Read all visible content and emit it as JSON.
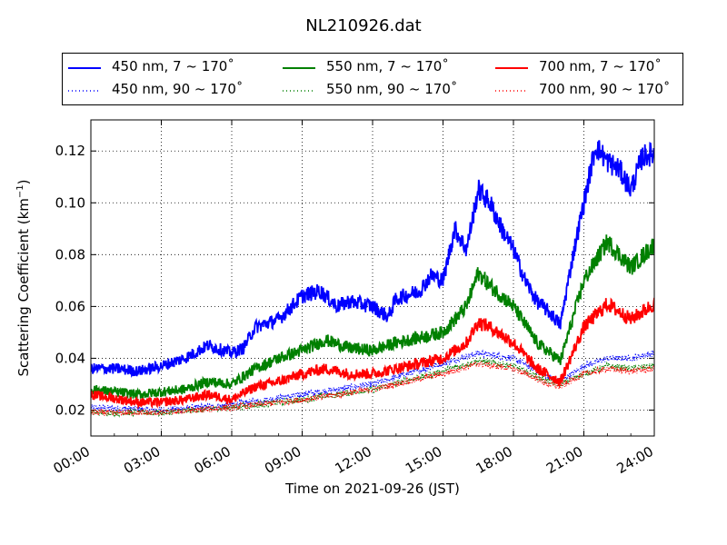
{
  "chart_data": {
    "type": "line",
    "title": "NL210926.dat",
    "xlabel": "Time on 2021-09-26 (JST)",
    "ylabel": "Scattering Coefficient (km",
    "ylabel_sup": "−1",
    "ylabel_suffix": ")",
    "xlim": [
      "00:00",
      "24:00"
    ],
    "ylim": [
      0.01,
      0.132
    ],
    "x_ticks": [
      "00:00",
      "03:00",
      "06:00",
      "09:00",
      "12:00",
      "15:00",
      "18:00",
      "21:00",
      "24:00"
    ],
    "y_ticks": [
      "0.02",
      "0.04",
      "0.06",
      "0.08",
      "0.10",
      "0.12"
    ],
    "grid": true,
    "legend_position": "top",
    "series": [
      {
        "name": "450 nm, 7 ~ 170˚",
        "color": "#0000ff",
        "style": "solid",
        "points": [
          [
            "00:00",
            0.036
          ],
          [
            "01:00",
            0.036
          ],
          [
            "02:00",
            0.035
          ],
          [
            "03:00",
            0.037
          ],
          [
            "04:00",
            0.04
          ],
          [
            "05:00",
            0.045
          ],
          [
            "06:00",
            0.042
          ],
          [
            "06:30",
            0.044
          ],
          [
            "07:00",
            0.052
          ],
          [
            "08:00",
            0.055
          ],
          [
            "09:00",
            0.064
          ],
          [
            "09:45",
            0.066
          ],
          [
            "10:30",
            0.06
          ],
          [
            "11:00",
            0.062
          ],
          [
            "12:00",
            0.06
          ],
          [
            "12:40",
            0.056
          ],
          [
            "13:00",
            0.063
          ],
          [
            "14:00",
            0.066
          ],
          [
            "14:30",
            0.072
          ],
          [
            "15:00",
            0.07
          ],
          [
            "15:30",
            0.09
          ],
          [
            "16:00",
            0.082
          ],
          [
            "16:30",
            0.105
          ],
          [
            "17:00",
            0.1
          ],
          [
            "17:30",
            0.09
          ],
          [
            "18:00",
            0.082
          ],
          [
            "18:30",
            0.07
          ],
          [
            "19:00",
            0.062
          ],
          [
            "19:30",
            0.058
          ],
          [
            "20:00",
            0.053
          ],
          [
            "20:30",
            0.078
          ],
          [
            "21:00",
            0.1
          ],
          [
            "21:30",
            0.122
          ],
          [
            "22:00",
            0.116
          ],
          [
            "22:30",
            0.113
          ],
          [
            "23:00",
            0.105
          ],
          [
            "23:30",
            0.118
          ],
          [
            "24:00",
            0.119
          ]
        ]
      },
      {
        "name": "450 nm, 90 ~ 170˚",
        "color": "#0000ff",
        "style": "dotted",
        "points": [
          [
            "00:00",
            0.021
          ],
          [
            "03:00",
            0.02
          ],
          [
            "06:00",
            0.022
          ],
          [
            "09:00",
            0.026
          ],
          [
            "12:00",
            0.03
          ],
          [
            "15:00",
            0.038
          ],
          [
            "16:30",
            0.042
          ],
          [
            "18:00",
            0.04
          ],
          [
            "19:30",
            0.033
          ],
          [
            "20:00",
            0.031
          ],
          [
            "21:00",
            0.037
          ],
          [
            "22:00",
            0.04
          ],
          [
            "23:00",
            0.04
          ],
          [
            "24:00",
            0.042
          ]
        ]
      },
      {
        "name": "550 nm, 7 ~ 170˚",
        "color": "#008000",
        "style": "solid",
        "points": [
          [
            "00:00",
            0.028
          ],
          [
            "02:00",
            0.026
          ],
          [
            "03:00",
            0.027
          ],
          [
            "04:00",
            0.028
          ],
          [
            "05:00",
            0.031
          ],
          [
            "06:00",
            0.03
          ],
          [
            "07:00",
            0.036
          ],
          [
            "08:00",
            0.04
          ],
          [
            "09:00",
            0.043
          ],
          [
            "10:00",
            0.047
          ],
          [
            "11:00",
            0.044
          ],
          [
            "12:00",
            0.043
          ],
          [
            "13:00",
            0.046
          ],
          [
            "14:00",
            0.048
          ],
          [
            "15:00",
            0.05
          ],
          [
            "16:00",
            0.06
          ],
          [
            "16:30",
            0.073
          ],
          [
            "17:00",
            0.068
          ],
          [
            "18:00",
            0.06
          ],
          [
            "19:00",
            0.046
          ],
          [
            "20:00",
            0.039
          ],
          [
            "21:00",
            0.07
          ],
          [
            "22:00",
            0.085
          ],
          [
            "23:00",
            0.075
          ],
          [
            "24:00",
            0.084
          ]
        ]
      },
      {
        "name": "550 nm, 90 ~ 170˚",
        "color": "#008000",
        "style": "dotted",
        "points": [
          [
            "00:00",
            0.019
          ],
          [
            "03:00",
            0.019
          ],
          [
            "06:00",
            0.021
          ],
          [
            "09:00",
            0.024
          ],
          [
            "12:00",
            0.028
          ],
          [
            "15:00",
            0.035
          ],
          [
            "16:30",
            0.039
          ],
          [
            "18:00",
            0.037
          ],
          [
            "19:30",
            0.031
          ],
          [
            "20:00",
            0.03
          ],
          [
            "21:00",
            0.034
          ],
          [
            "22:00",
            0.037
          ],
          [
            "23:00",
            0.036
          ],
          [
            "24:00",
            0.037
          ]
        ]
      },
      {
        "name": "700 nm, 7 ~ 170˚",
        "color": "#ff0000",
        "style": "solid",
        "points": [
          [
            "00:00",
            0.026
          ],
          [
            "02:00",
            0.023
          ],
          [
            "03:00",
            0.023
          ],
          [
            "04:00",
            0.024
          ],
          [
            "05:00",
            0.026
          ],
          [
            "06:00",
            0.024
          ],
          [
            "07:00",
            0.029
          ],
          [
            "08:00",
            0.031
          ],
          [
            "09:00",
            0.034
          ],
          [
            "10:00",
            0.036
          ],
          [
            "11:00",
            0.034
          ],
          [
            "12:00",
            0.034
          ],
          [
            "13:00",
            0.036
          ],
          [
            "14:00",
            0.038
          ],
          [
            "15:00",
            0.04
          ],
          [
            "16:00",
            0.046
          ],
          [
            "16:30",
            0.054
          ],
          [
            "17:00",
            0.052
          ],
          [
            "18:00",
            0.046
          ],
          [
            "19:00",
            0.036
          ],
          [
            "20:00",
            0.031
          ],
          [
            "21:00",
            0.052
          ],
          [
            "22:00",
            0.061
          ],
          [
            "23:00",
            0.055
          ],
          [
            "24:00",
            0.061
          ]
        ]
      },
      {
        "name": "700 nm, 90 ~ 170˚",
        "color": "#ff0000",
        "style": "dotted",
        "points": [
          [
            "00:00",
            0.019
          ],
          [
            "03:00",
            0.019
          ],
          [
            "06:00",
            0.021
          ],
          [
            "09:00",
            0.024
          ],
          [
            "12:00",
            0.028
          ],
          [
            "15:00",
            0.034
          ],
          [
            "16:30",
            0.038
          ],
          [
            "18:00",
            0.036
          ],
          [
            "19:30",
            0.03
          ],
          [
            "20:00",
            0.029
          ],
          [
            "21:00",
            0.034
          ],
          [
            "22:00",
            0.036
          ],
          [
            "23:00",
            0.035
          ],
          [
            "24:00",
            0.036
          ]
        ]
      }
    ]
  }
}
